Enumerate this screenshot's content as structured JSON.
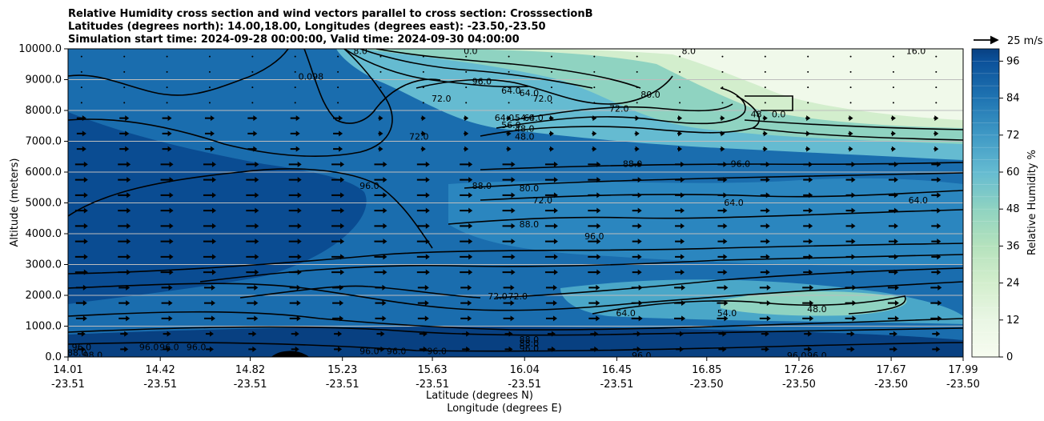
{
  "chart_data": {
    "type": "heatmap",
    "title_lines": [
      "Relative Humidity cross section and wind vectors parallel to cross section: CrosssectionB",
      "Latitudes (degrees north): 14.00,18.00, Longitudes (degrees east): -23.50,-23.50",
      "Simulation start time: 2024-09-28 00:00:00, Valid time: 2024-09-30 04:00:00"
    ],
    "xlabel_lat": "Latitude (degrees N)",
    "xlabel_lon": "Longitude (degrees E)",
    "ylabel": "Altitude (meters)",
    "colorbar_label": "Relative Humidity %",
    "quiver_key": "25 m/s",
    "x_ticks_lat": [
      "14.01",
      "14.42",
      "14.82",
      "15.23",
      "15.63",
      "16.04",
      "16.45",
      "16.85",
      "17.26",
      "17.67",
      "17.99"
    ],
    "x_ticks_lon": [
      "-23.51",
      "-23.51",
      "-23.51",
      "-23.51",
      "-23.51",
      "-23.51",
      "-23.51",
      "-23.50",
      "-23.50",
      "-23.50",
      "-23.50"
    ],
    "y_ticks": [
      "0.0",
      "1000.0",
      "2000.0",
      "3000.0",
      "4000.0",
      "5000.0",
      "6000.0",
      "7000.0",
      "8000.0",
      "9000.0",
      "10000.0"
    ],
    "ylim": [
      0,
      10000
    ],
    "xlim": [
      14.01,
      17.99
    ],
    "colorbar_ticks": [
      "0",
      "12",
      "24",
      "36",
      "48",
      "60",
      "72",
      "84",
      "96"
    ],
    "colorbar_range": [
      0,
      100
    ],
    "grid": "horizontal",
    "contour_labels": [
      {
        "text": "96.0",
        "x": 14.07,
        "y": 330
      },
      {
        "text": "88.0",
        "x": 14.05,
        "y": 140
      },
      {
        "text": "98.0",
        "x": 14.12,
        "y": 70
      },
      {
        "text": "96.0",
        "x": 14.37,
        "y": 330
      },
      {
        "text": "96.0",
        "x": 14.46,
        "y": 330
      },
      {
        "text": "96.0",
        "x": 14.58,
        "y": 330
      },
      {
        "text": "0.098",
        "x": 15.09,
        "y": 9100
      },
      {
        "text": "0.0",
        "x": 15.8,
        "y": 9930
      },
      {
        "text": "96.0",
        "x": 15.85,
        "y": 8950
      },
      {
        "text": "64.0",
        "x": 15.98,
        "y": 8650
      },
      {
        "text": "64.0",
        "x": 16.06,
        "y": 8570
      },
      {
        "text": "72.0",
        "x": 15.67,
        "y": 8390
      },
      {
        "text": "72.0",
        "x": 16.12,
        "y": 8390
      },
      {
        "text": "72.0",
        "x": 16.46,
        "y": 8070
      },
      {
        "text": "80.0",
        "x": 16.6,
        "y": 8520
      },
      {
        "text": "64.0",
        "x": 15.95,
        "y": 7770
      },
      {
        "text": "54.0",
        "x": 16.04,
        "y": 7770
      },
      {
        "text": "64.0",
        "x": 16.08,
        "y": 7770
      },
      {
        "text": "56.0",
        "x": 15.98,
        "y": 7530
      },
      {
        "text": "48.0",
        "x": 16.04,
        "y": 7420
      },
      {
        "text": "48.0",
        "x": 16.04,
        "y": 7160
      },
      {
        "text": "72.0",
        "x": 15.57,
        "y": 7160
      },
      {
        "text": "48",
        "x": 17.07,
        "y": 7880
      },
      {
        "text": "8.0",
        "x": 15.31,
        "y": 9930
      },
      {
        "text": "8.0",
        "x": 16.77,
        "y": 9930
      },
      {
        "text": "16.0",
        "x": 17.78,
        "y": 9930
      },
      {
        "text": "0.0",
        "x": 17.17,
        "y": 7880
      },
      {
        "text": "88.0",
        "x": 16.52,
        "y": 6270
      },
      {
        "text": "96.0",
        "x": 17.0,
        "y": 6270
      },
      {
        "text": "96.0",
        "x": 15.35,
        "y": 5560
      },
      {
        "text": "88.0",
        "x": 15.85,
        "y": 5560
      },
      {
        "text": "80.0",
        "x": 16.06,
        "y": 5480
      },
      {
        "text": "72.0",
        "x": 16.12,
        "y": 5090
      },
      {
        "text": "64.0",
        "x": 16.97,
        "y": 5010
      },
      {
        "text": "64.0",
        "x": 17.79,
        "y": 5090
      },
      {
        "text": "88.0",
        "x": 16.06,
        "y": 4310
      },
      {
        "text": "96.0",
        "x": 16.35,
        "y": 3920
      },
      {
        "text": "72.0",
        "x": 15.92,
        "y": 1970
      },
      {
        "text": "72.0",
        "x": 16.01,
        "y": 1970
      },
      {
        "text": "64.0",
        "x": 16.49,
        "y": 1430
      },
      {
        "text": "54.0",
        "x": 16.94,
        "y": 1430
      },
      {
        "text": "48.0",
        "x": 17.34,
        "y": 1560
      },
      {
        "text": "88.0",
        "x": 16.06,
        "y": 570
      },
      {
        "text": "88.0",
        "x": 16.06,
        "y": 440
      },
      {
        "text": "96.0",
        "x": 16.06,
        "y": 280
      },
      {
        "text": "96.0",
        "x": 15.35,
        "y": 200
      },
      {
        "text": "96.0",
        "x": 15.47,
        "y": 200
      },
      {
        "text": "96.0",
        "x": 15.65,
        "y": 200
      },
      {
        "text": "96.0",
        "x": 16.56,
        "y": 50
      },
      {
        "text": "96.0",
        "x": 17.25,
        "y": 50
      },
      {
        "text": "96.0",
        "x": 17.34,
        "y": 50
      }
    ]
  }
}
